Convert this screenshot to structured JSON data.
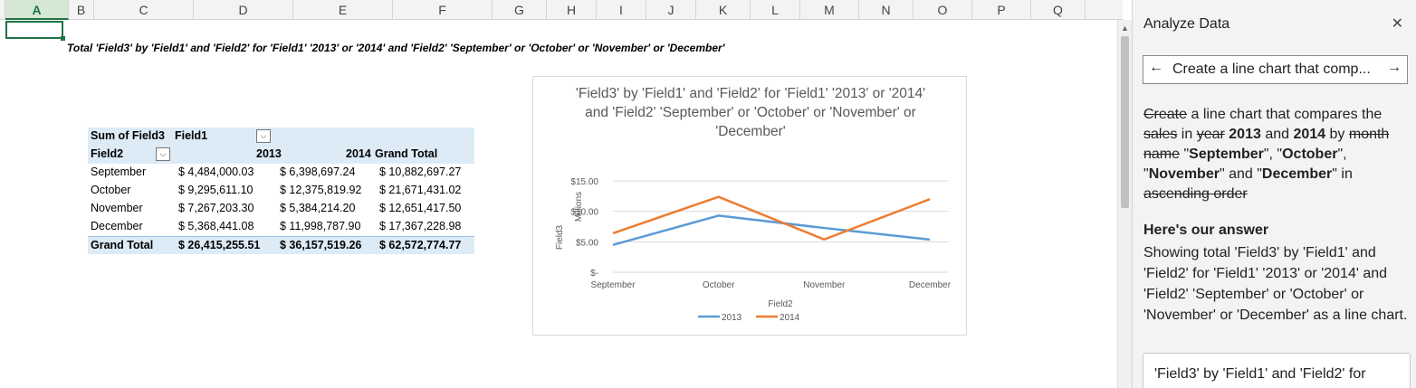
{
  "columns": [
    {
      "label": "A",
      "active": true
    },
    {
      "label": "B"
    },
    {
      "label": "C"
    },
    {
      "label": "D"
    },
    {
      "label": "E"
    },
    {
      "label": "F"
    },
    {
      "label": "G"
    },
    {
      "label": "H"
    },
    {
      "label": "I"
    },
    {
      "label": "J"
    },
    {
      "label": "K"
    },
    {
      "label": "L"
    },
    {
      "label": "M"
    },
    {
      "label": "N"
    },
    {
      "label": "O"
    },
    {
      "label": "P"
    },
    {
      "label": "Q"
    }
  ],
  "sheet": {
    "title": "Total 'Field3' by 'Field1' and 'Field2' for 'Field1' '2013' or '2014' and 'Field2' 'September' or 'October' or 'November' or 'December'"
  },
  "pivot": {
    "header1": {
      "values_label": "Sum of Field3",
      "col_field": "Field1"
    },
    "header2": {
      "row_field": "Field2",
      "col_2013": "2013",
      "col_2014": "2014",
      "grand_total": "Grand Total"
    },
    "rows": [
      {
        "label": "September",
        "v2013": "$   4,484,000.03",
        "v2014": "$   6,398,697.24",
        "total": "$ 10,882,697.27"
      },
      {
        "label": "October",
        "v2013": "$   9,295,611.10",
        "v2014": "$ 12,375,819.92",
        "total": "$ 21,671,431.02"
      },
      {
        "label": "November",
        "v2013": "$   7,267,203.30",
        "v2014": "$   5,384,214.20",
        "total": "$ 12,651,417.50"
      },
      {
        "label": "December",
        "v2013": "$   5,368,441.08",
        "v2014": "$ 11,998,787.90",
        "total": "$ 17,367,228.98"
      }
    ],
    "grand_total": {
      "label": "Grand Total",
      "v2013": "$ 26,415,255.51",
      "v2014": "$ 36,157,519.26",
      "total": "$ 62,572,774.77"
    },
    "dropdown_icon": "chevron-down-icon"
  },
  "chart_data": {
    "type": "line",
    "title": "'Field3' by 'Field1' and 'Field2' for 'Field1' '2013' or '2014' and 'Field2' 'September' or 'October' or 'November' or 'December'",
    "categories": [
      "September",
      "October",
      "November",
      "December"
    ],
    "series": [
      {
        "name": "2013",
        "color": "#5b9bd5",
        "values": [
          4.484,
          9.295611,
          7.267203,
          5.368441
        ]
      },
      {
        "name": "2014",
        "color": "#ed7d31",
        "values": [
          6.398697,
          12.37582,
          5.384214,
          11.998788
        ]
      }
    ],
    "xlabel": "Field2",
    "ylabel": "Field3",
    "unit_label": "Millions",
    "ylim": [
      0,
      15
    ],
    "yticks": [
      0,
      5,
      10,
      15
    ],
    "ytick_labels": [
      "$-",
      "$5.00",
      "$10.00",
      "$15.00"
    ],
    "grid": true,
    "legend": "bottom"
  },
  "panel": {
    "title": "Analyze Data",
    "close_icon": "close-icon",
    "query": "Create a line chart that comp...",
    "back_icon": "arrow-left-icon",
    "forward_icon": "arrow-right-icon",
    "interp": {
      "w1": "Create",
      "t1": " a line chart that compares the ",
      "w2": "sales",
      "t2": " in ",
      "w3": "year",
      "t3": " ",
      "b1": "2013",
      "t4": " and ",
      "b2": "2014",
      "t5": " by ",
      "w4": "month name",
      "t6": " \"",
      "b3": "September",
      "t7": "\", \"",
      "b4": "October",
      "t8": "\", \"",
      "b5": "November",
      "t9": "\" and \"",
      "b6": "December",
      "t10": "\" in ",
      "w5": "ascending order"
    },
    "answer_heading": "Here's our answer",
    "answer_text": "Showing total 'Field3' by 'Field1' and 'Field2' for 'Field1' '2013' or '2014' and 'Field2' 'September' or 'October' or 'November' or 'December' as a line chart.",
    "card_text": "'Field3' by 'Field1' and 'Field2' for"
  }
}
